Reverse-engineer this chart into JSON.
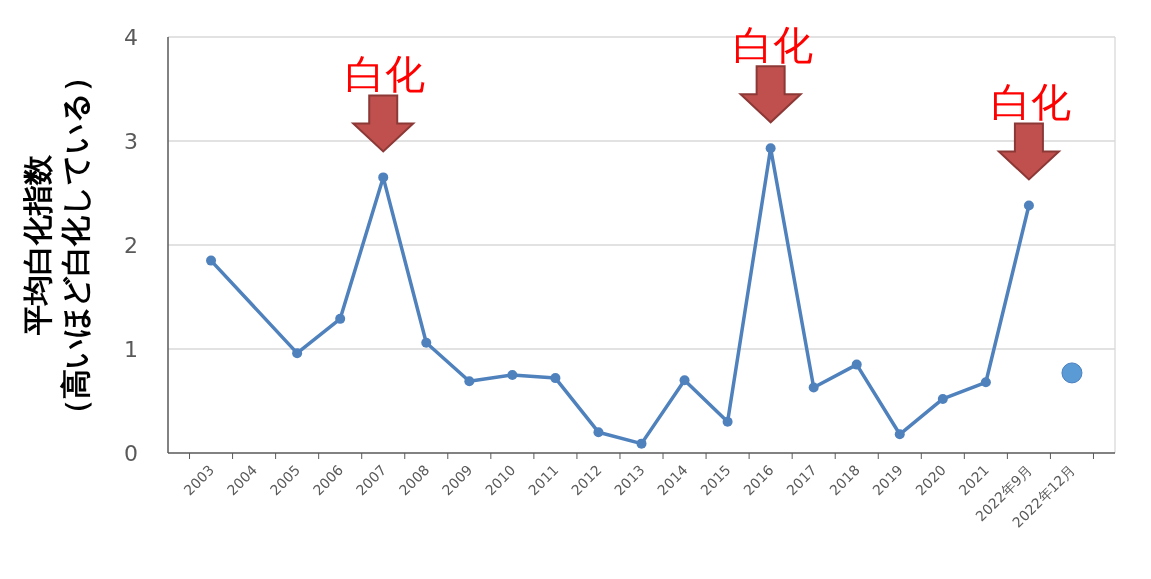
{
  "chart_data": {
    "type": "line",
    "ylabel": "平均白化指数（高いほど白化している）",
    "categories": [
      "2003",
      "2004",
      "2005",
      "2006",
      "2007",
      "2008",
      "2009",
      "2010",
      "2011",
      "2012",
      "2013",
      "2014",
      "2015",
      "2016",
      "2017",
      "2018",
      "2019",
      "2020",
      "2021",
      "2022年9月",
      "2022年12月"
    ],
    "ylim": [
      0,
      4
    ],
    "yticks": [
      0,
      1,
      2,
      3,
      4
    ],
    "grid": "y",
    "marker": "circle",
    "line_style": "solid",
    "series": [
      {
        "color": "#4f81bd",
        "values": [
          1.85,
          null,
          0.96,
          1.29,
          2.65,
          1.06,
          0.69,
          0.75,
          0.72,
          0.2,
          0.09,
          0.7,
          0.3,
          2.93,
          0.63,
          0.85,
          0.18,
          0.52,
          0.68,
          2.38,
          null
        ]
      },
      {
        "type": "scatter",
        "color": "#5b9bd5",
        "values": [
          null,
          null,
          null,
          null,
          null,
          null,
          null,
          null,
          null,
          null,
          null,
          null,
          null,
          null,
          null,
          null,
          null,
          null,
          null,
          null,
          0.77
        ]
      }
    ],
    "annotations": [
      {
        "text": "白化",
        "x": "2007",
        "y": 2.65
      },
      {
        "text": "白化",
        "x": "2016",
        "y": 2.93
      },
      {
        "text": "白化",
        "x": "2022年9月",
        "y": 2.38
      }
    ]
  }
}
